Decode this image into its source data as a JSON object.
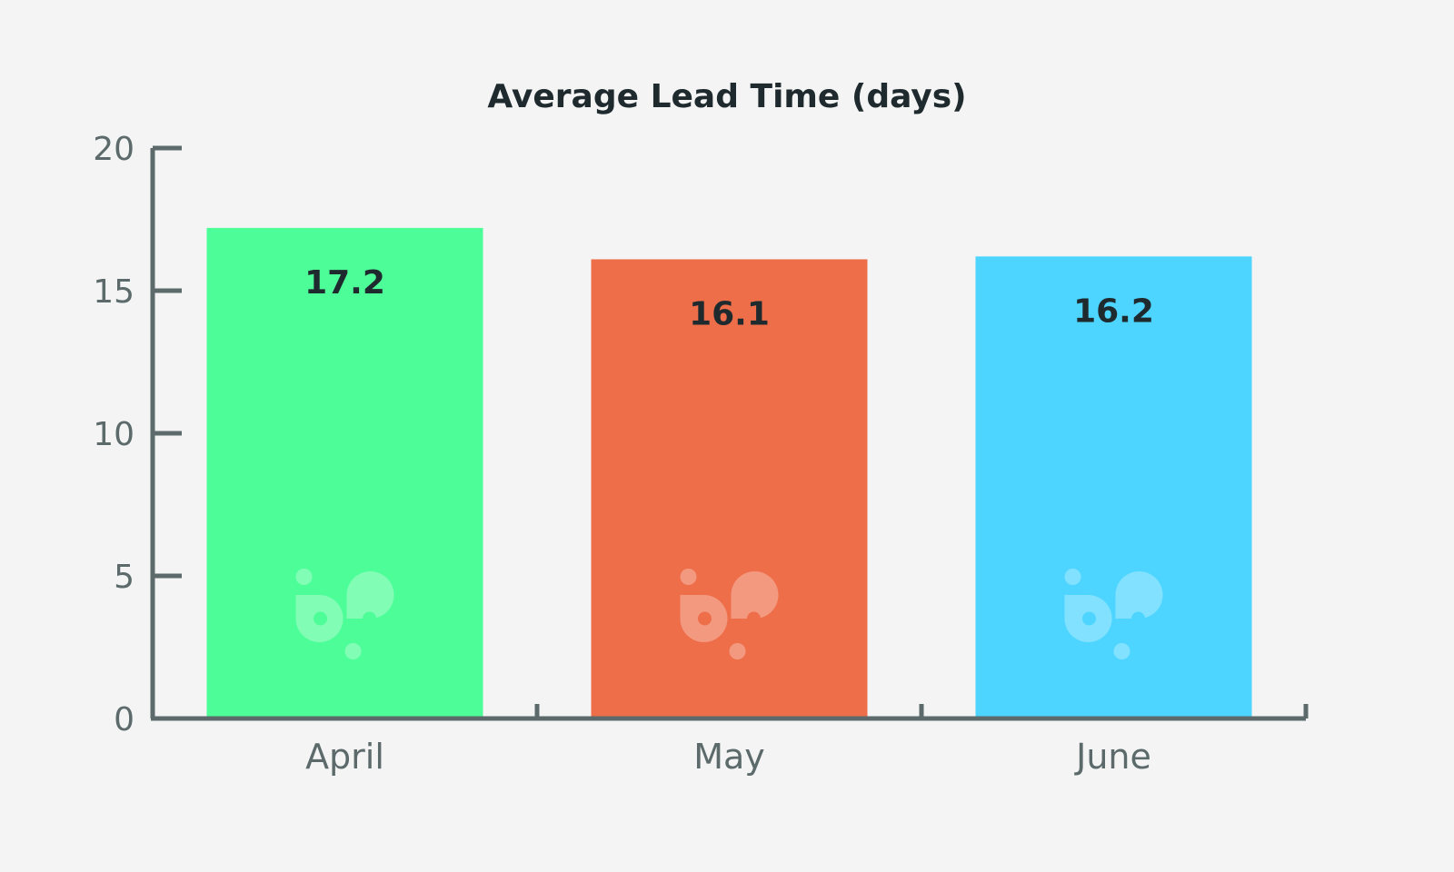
{
  "chart_data": {
    "type": "bar",
    "title": "Average Lead Time (days)",
    "categories": [
      "April",
      "May",
      "June"
    ],
    "values": [
      17.2,
      16.1,
      16.2
    ],
    "value_labels": [
      "17.2",
      "16.1",
      "16.2"
    ],
    "colors": [
      "#4dfd97",
      "#ee6e4a",
      "#4dd5ff"
    ],
    "ylim": [
      0,
      20
    ],
    "yticks": [
      0,
      5,
      10,
      15,
      20
    ],
    "ytick_labels": [
      "0",
      "5",
      "10",
      "15",
      "20"
    ],
    "xlabel": "",
    "ylabel": "",
    "grid": false,
    "watermark_logo": "bp"
  },
  "style": {
    "background": "#f3f4f3",
    "axis_color": "#5c6a6b",
    "text_dark": "#1f2a2e"
  }
}
